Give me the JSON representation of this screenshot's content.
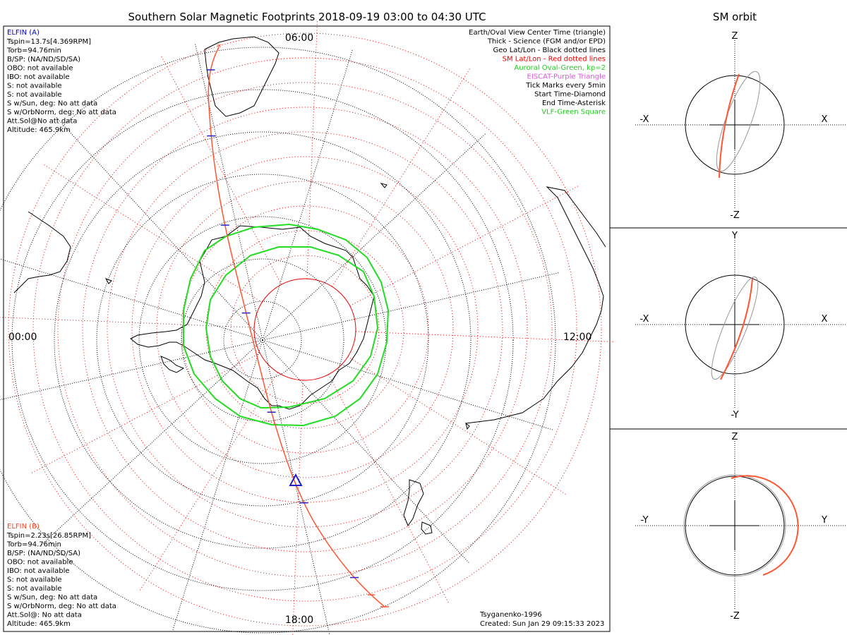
{
  "title": "Southern Solar Magnetic Footprints 2018-09-19 03:00 to 04:30 UTC",
  "orbit_title": "SM orbit",
  "hour_labels": {
    "top": "06:00",
    "left": "00:00",
    "right": "12:00",
    "bottom": "18:00"
  },
  "elfin_a": {
    "name": "ELFIN (A)",
    "color": "#0000cc",
    "lines": [
      "Tspin=13.7s[4.369RPM]",
      "Torb=94.76min",
      "B/SP: (NA/ND/SD/SA)",
      "OBO: not available",
      "IBO: not available",
      "S: not available",
      "S: not available",
      "S w/Sun, deg: No att data",
      "S w/OrbNorm, deg: No att data",
      "Att.Sol@No att data",
      "Altitude: 465.9km"
    ]
  },
  "elfin_b": {
    "name": "ELFIN (B)",
    "color": "#ff4422",
    "lines": [
      "Tspin=2.23s[26.85RPM]",
      "Torb=94.76min",
      "B/SP: (NA/ND/SD/SA)",
      "OBO: not available",
      "IBO: not available",
      "S: not available",
      "S: not available",
      "S w/Sun, deg: No att data",
      "S w/OrbNorm, deg: No att data",
      "Att.Sol@: No att data",
      "Altitude: 465.9km"
    ]
  },
  "legend": [
    {
      "text": "Earth/Oval View Center Time (triangle)",
      "color": "#000000"
    },
    {
      "text": "Thick - Science (FGM and/or EPD)",
      "color": "#000000"
    },
    {
      "text": "Geo Lat/Lon - Black dotted lines",
      "color": "#000000"
    },
    {
      "text": "SM Lat/Lon - Red dotted lines",
      "color": "#ee0000"
    },
    {
      "text": "Auroral Oval-Green, kp=2",
      "color": "#22cc22"
    },
    {
      "text": "EISCAT-Purple Triangle",
      "color": "#dd55dd"
    },
    {
      "text": "Tick Marks every 5min",
      "color": "#000000"
    },
    {
      "text": "Start Time-Diamond",
      "color": "#000000"
    },
    {
      "text": "End Time-Asterisk",
      "color": "#000000"
    },
    {
      "text": "VLF-Green Square",
      "color": "#22cc22"
    }
  ],
  "credit": {
    "model": "Tsyganenko-1996",
    "created": "Created: Sun Jan 29 09:15:33 2023"
  },
  "orbit_panels": [
    {
      "top": "Z",
      "bottom": "-Z",
      "left": "-X",
      "right": "X"
    },
    {
      "top": "Y",
      "bottom": "-Y",
      "left": "-X",
      "right": "X"
    },
    {
      "top": "Z",
      "bottom": "-Z",
      "left": "-Y",
      "right": "Y"
    }
  ],
  "colors": {
    "track": "#ff5533",
    "ticks": "#2222cc",
    "oval": "#22dd22",
    "sm_grid": "#ee0000",
    "geo_grid": "#000000"
  }
}
